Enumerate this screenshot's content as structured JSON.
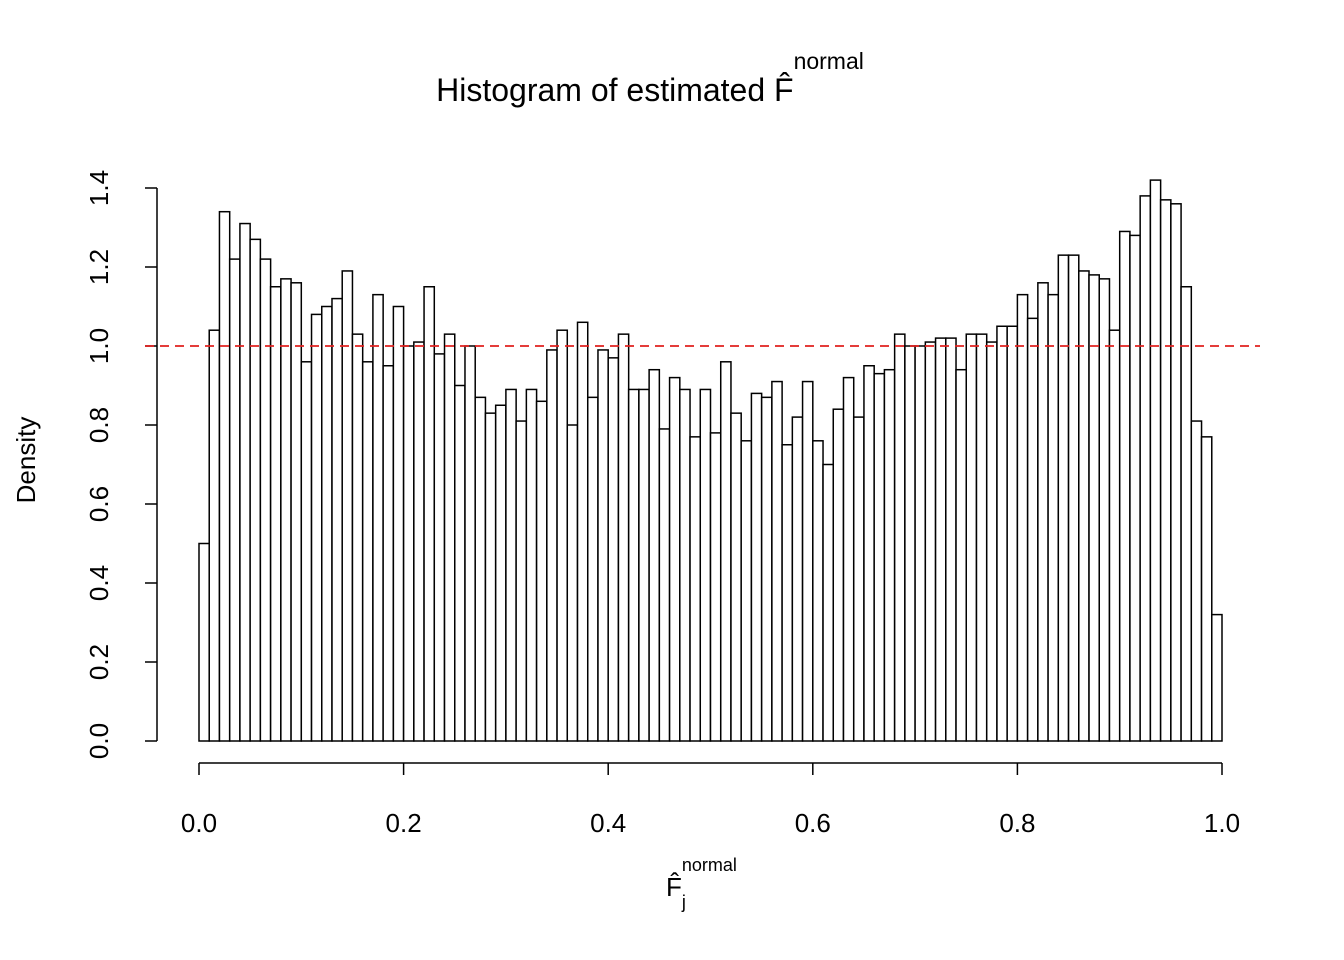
{
  "chart_data": {
    "type": "histogram",
    "title": {
      "text": "Histogram of estimated F̂",
      "sup": "normal"
    },
    "xlabel": {
      "text": "F̂",
      "sub": "j",
      "sup": "normal"
    },
    "ylabel": "Density",
    "bins": [
      0,
      0.01,
      0.02,
      0.03,
      0.04,
      0.05,
      0.06,
      0.07,
      0.08,
      0.09,
      0.1,
      0.11,
      0.12,
      0.13,
      0.14,
      0.15,
      0.16,
      0.17,
      0.18,
      0.19,
      0.2,
      0.21,
      0.22,
      0.23,
      0.24,
      0.25,
      0.26,
      0.27,
      0.28,
      0.29,
      0.3,
      0.31,
      0.32,
      0.33,
      0.34,
      0.35,
      0.36,
      0.37,
      0.38,
      0.39,
      0.4,
      0.41,
      0.42,
      0.43,
      0.44,
      0.45,
      0.46,
      0.47,
      0.48,
      0.49,
      0.5,
      0.51,
      0.52,
      0.53,
      0.54,
      0.55,
      0.56,
      0.57,
      0.58,
      0.59,
      0.6,
      0.61,
      0.62,
      0.63,
      0.64,
      0.65,
      0.66,
      0.67,
      0.68,
      0.69,
      0.7,
      0.71,
      0.72,
      0.73,
      0.74,
      0.75,
      0.76,
      0.77,
      0.78,
      0.79,
      0.8,
      0.81,
      0.82,
      0.83,
      0.84,
      0.85,
      0.86,
      0.87,
      0.88,
      0.89,
      0.9,
      0.91,
      0.92,
      0.93,
      0.94,
      0.95,
      0.96,
      0.97,
      0.98,
      0.99,
      1
    ],
    "values": [
      0.5,
      1.04,
      1.34,
      1.22,
      1.31,
      1.27,
      1.22,
      1.15,
      1.17,
      1.16,
      0.96,
      1.08,
      1.1,
      1.12,
      1.19,
      1.03,
      0.96,
      1.13,
      0.95,
      1.1,
      1.0,
      1.01,
      1.15,
      0.98,
      1.03,
      0.9,
      1.0,
      0.87,
      0.83,
      0.85,
      0.89,
      0.81,
      0.89,
      0.86,
      0.99,
      1.04,
      0.8,
      1.06,
      0.87,
      0.99,
      0.97,
      1.03,
      0.89,
      0.89,
      0.94,
      0.79,
      0.92,
      0.89,
      0.77,
      0.89,
      0.78,
      0.96,
      0.83,
      0.76,
      0.88,
      0.87,
      0.91,
      0.75,
      0.82,
      0.91,
      0.76,
      0.7,
      0.84,
      0.92,
      0.82,
      0.95,
      0.93,
      0.94,
      1.03,
      1.0,
      1.0,
      1.01,
      1.02,
      1.02,
      0.94,
      1.03,
      1.03,
      1.01,
      1.05,
      1.05,
      1.13,
      1.07,
      1.16,
      1.13,
      1.23,
      1.23,
      1.19,
      1.18,
      1.17,
      1.04,
      1.29,
      1.28,
      1.38,
      1.42,
      1.37,
      1.36,
      1.15,
      0.81,
      0.77,
      0.32
    ],
    "color": "#ffffff",
    "edgecolor": "#000000",
    "hline": {
      "value": 1,
      "color": "#e0201f",
      "style": "dashed"
    },
    "xlim": [
      0,
      1
    ],
    "xticks": [
      {
        "value": 0,
        "label": "0.0"
      },
      {
        "value": 0.2,
        "label": "0.2"
      },
      {
        "value": 0.4,
        "label": "0.4"
      },
      {
        "value": 0.6,
        "label": "0.6"
      },
      {
        "value": 0.8,
        "label": "0.8"
      },
      {
        "value": 1,
        "label": "1.0"
      }
    ],
    "ylim": [
      0,
      1.4
    ],
    "yticks": [
      {
        "value": 0,
        "label": "0.0"
      },
      {
        "value": 0.2,
        "label": "0.2"
      },
      {
        "value": 0.4,
        "label": "0.4"
      },
      {
        "value": 0.6,
        "label": "0.6"
      },
      {
        "value": 0.8,
        "label": "0.8"
      },
      {
        "value": 1,
        "label": "1.0"
      },
      {
        "value": 1.2,
        "label": "1.2"
      },
      {
        "value": 1.4,
        "label": "1.4"
      }
    ]
  }
}
